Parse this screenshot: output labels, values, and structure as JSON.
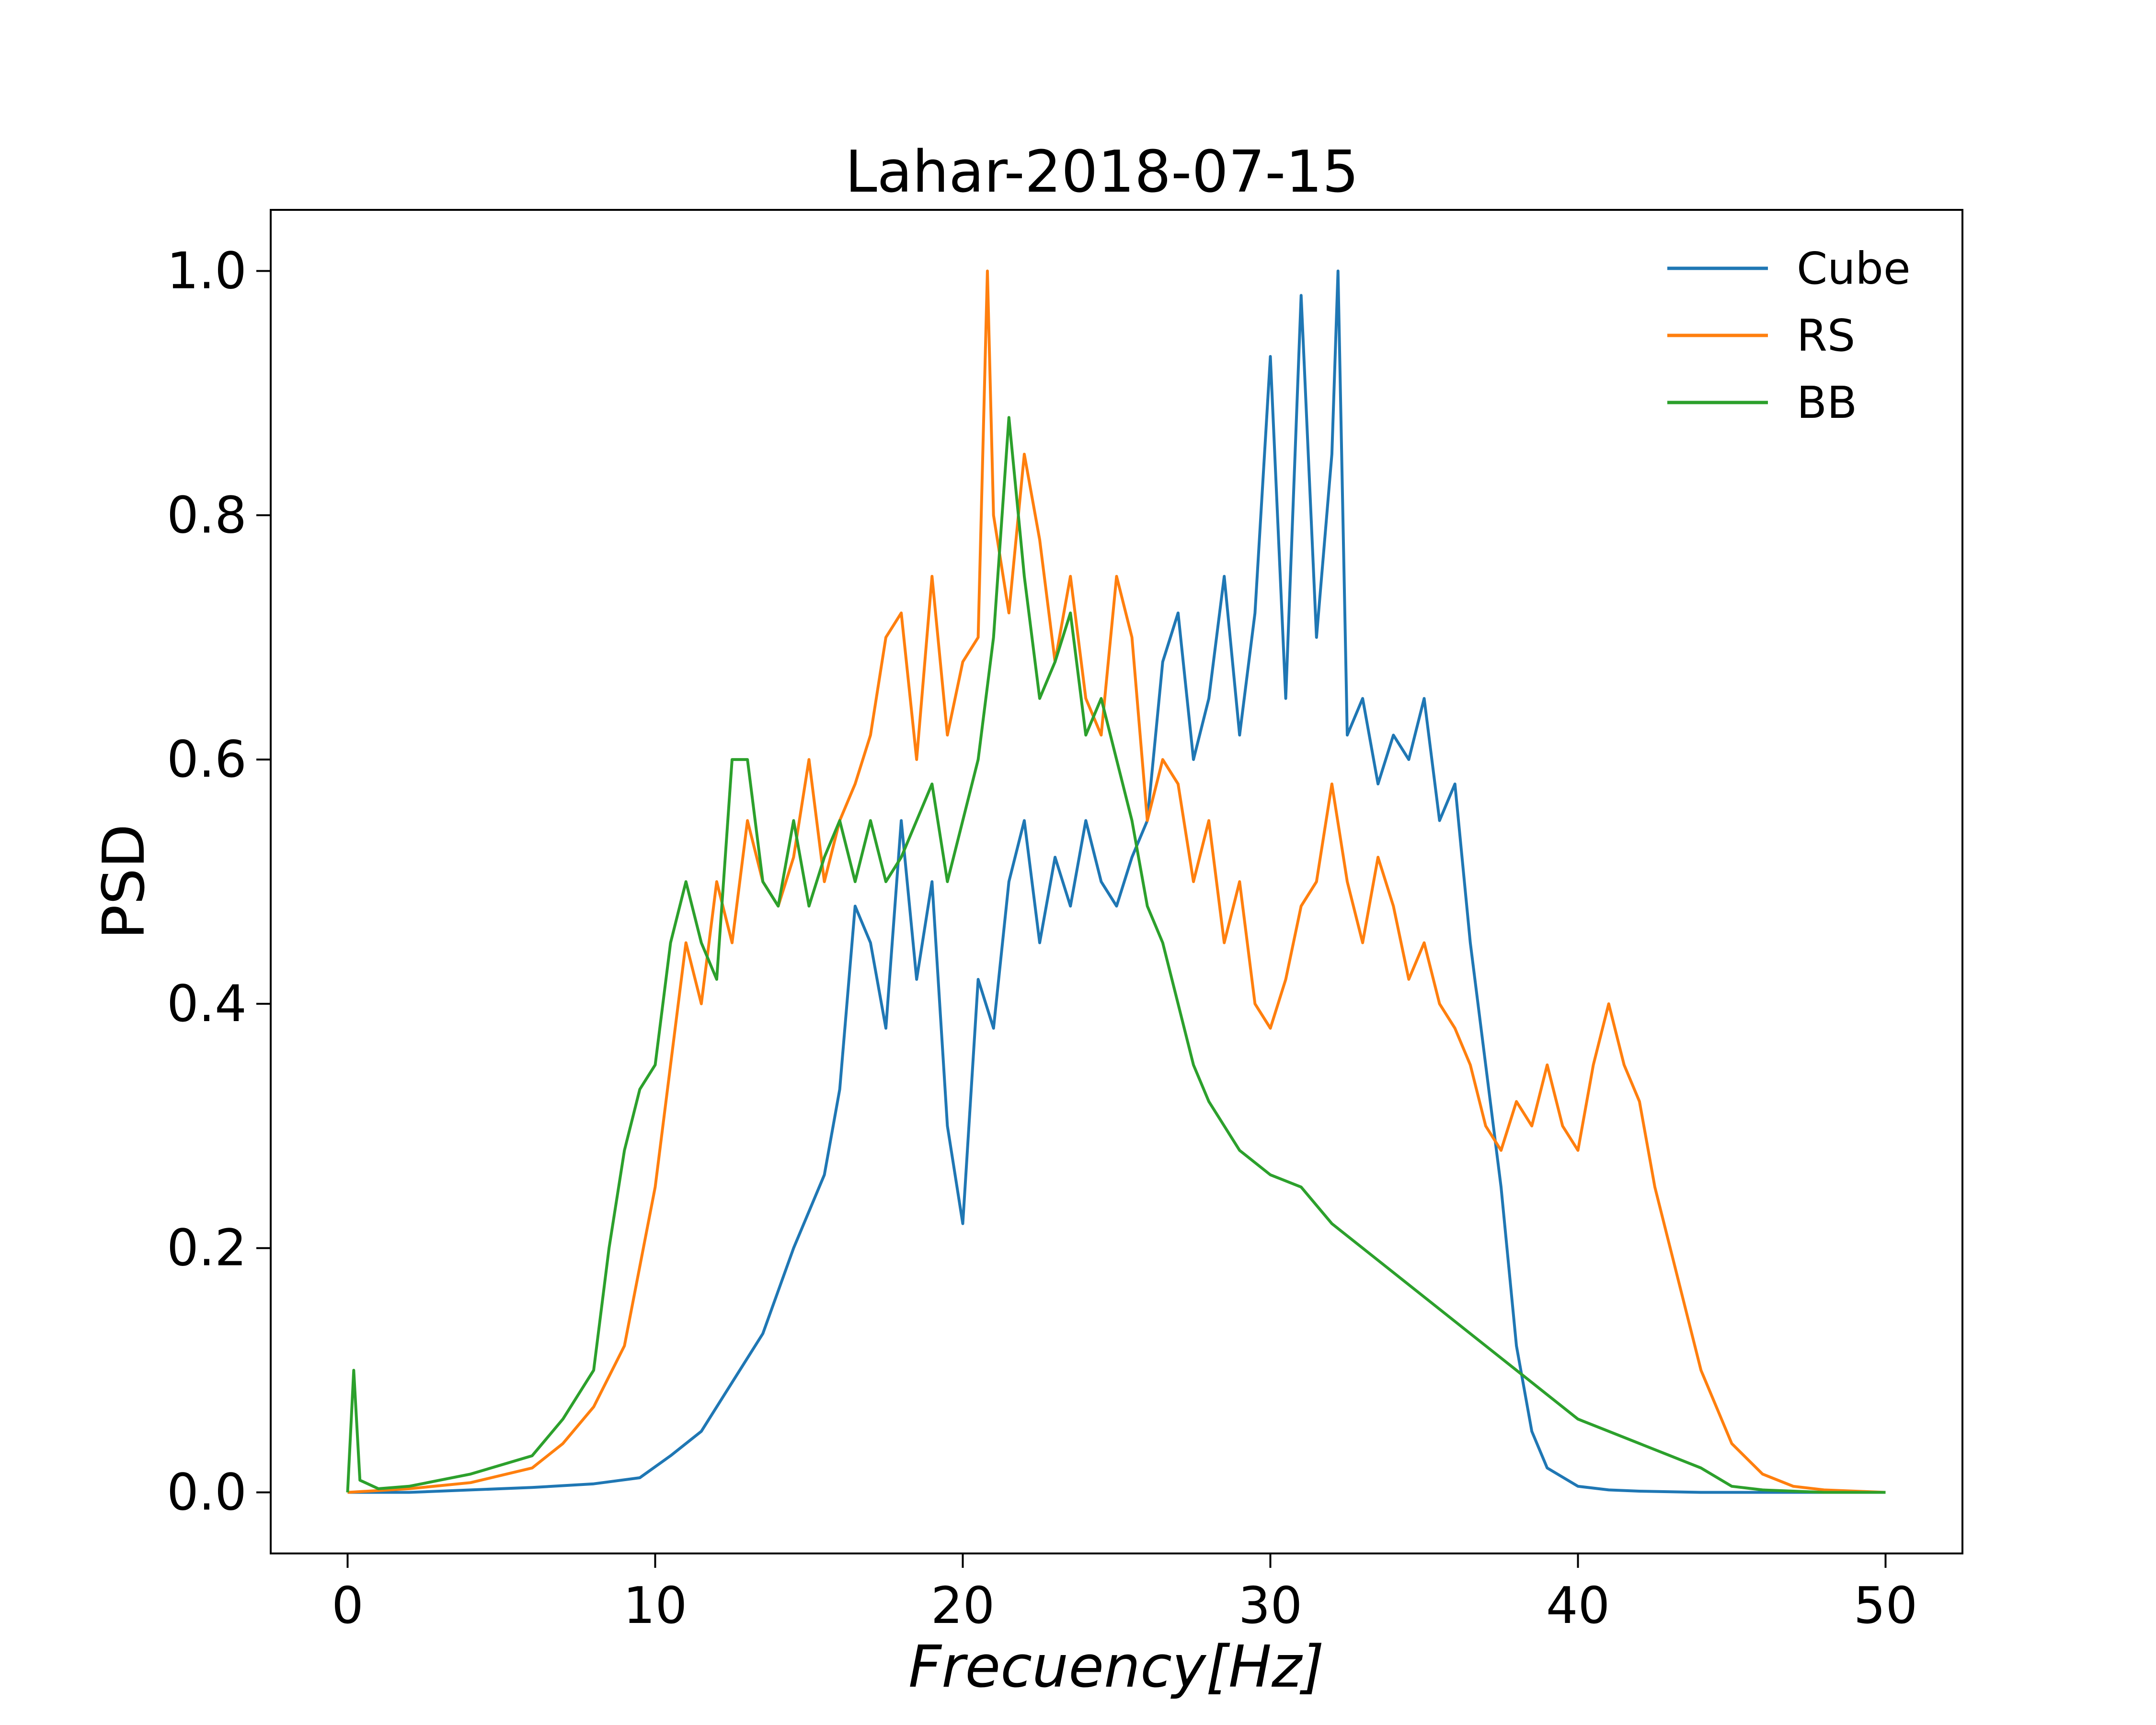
{
  "chart_data": {
    "type": "line",
    "title": "Lahar-2018-07-15",
    "xlabel": "Frecuency[Hz]",
    "ylabel": "PSD",
    "xlim": [
      -2.5,
      52.5
    ],
    "ylim": [
      -0.05,
      1.05
    ],
    "xticks": [
      0,
      10,
      20,
      30,
      40,
      50
    ],
    "yticks": [
      0.0,
      0.2,
      0.4,
      0.6,
      0.8,
      1.0
    ],
    "xtick_labels": [
      "0",
      "10",
      "20",
      "30",
      "40",
      "50"
    ],
    "ytick_labels": [
      "0.0",
      "0.2",
      "0.4",
      "0.6",
      "0.8",
      "1.0"
    ],
    "grid": false,
    "legend_position": "top-right",
    "series": [
      {
        "name": "Cube",
        "color": "#1f77b4",
        "x": [
          0,
          2,
          4,
          6,
          8,
          9.5,
          10.5,
          11.5,
          12.5,
          13.5,
          14.5,
          15.5,
          16,
          16.5,
          17,
          17.5,
          18,
          18.5,
          19,
          19.5,
          20,
          20.5,
          21,
          21.5,
          22,
          22.5,
          23,
          23.5,
          24,
          24.5,
          25,
          25.5,
          26,
          26.5,
          27,
          27.5,
          28,
          28.5,
          29,
          29.5,
          30,
          30.5,
          31,
          31.5,
          32,
          32.2,
          32.5,
          33,
          33.5,
          34,
          34.5,
          35,
          35.5,
          36,
          36.5,
          37,
          37.5,
          38,
          38.5,
          39,
          40,
          41,
          42,
          44,
          46,
          48,
          50
        ],
        "y": [
          0.0,
          0.0,
          0.002,
          0.004,
          0.007,
          0.012,
          0.03,
          0.05,
          0.09,
          0.13,
          0.2,
          0.26,
          0.33,
          0.48,
          0.45,
          0.38,
          0.55,
          0.42,
          0.5,
          0.3,
          0.22,
          0.42,
          0.38,
          0.5,
          0.55,
          0.45,
          0.52,
          0.48,
          0.55,
          0.5,
          0.48,
          0.52,
          0.55,
          0.68,
          0.72,
          0.6,
          0.65,
          0.75,
          0.62,
          0.72,
          0.93,
          0.65,
          0.98,
          0.7,
          0.85,
          1.0,
          0.62,
          0.65,
          0.58,
          0.62,
          0.6,
          0.65,
          0.55,
          0.58,
          0.45,
          0.35,
          0.25,
          0.12,
          0.05,
          0.02,
          0.005,
          0.002,
          0.001,
          0.0,
          0.0,
          0.0,
          0.0
        ]
      },
      {
        "name": "RS",
        "color": "#ff7f0e",
        "x": [
          0,
          2,
          4,
          6,
          7,
          8,
          9,
          10,
          10.5,
          11,
          11.5,
          12,
          12.5,
          13,
          13.5,
          14,
          14.5,
          15,
          15.5,
          16,
          16.5,
          17,
          17.5,
          18,
          18.5,
          19,
          19.5,
          20,
          20.5,
          20.8,
          21,
          21.5,
          22,
          22.5,
          23,
          23.5,
          24,
          24.5,
          25,
          25.5,
          26,
          26.5,
          27,
          27.5,
          28,
          28.5,
          29,
          29.5,
          30,
          30.5,
          31,
          31.5,
          32,
          32.5,
          33,
          33.5,
          34,
          34.5,
          35,
          35.5,
          36,
          36.5,
          37,
          37.5,
          38,
          38.5,
          39,
          39.5,
          40,
          40.5,
          41,
          41.5,
          42,
          42.5,
          43,
          43.5,
          44,
          44.5,
          45,
          46,
          47,
          48,
          50
        ],
        "y": [
          0.0,
          0.003,
          0.008,
          0.02,
          0.04,
          0.07,
          0.12,
          0.25,
          0.35,
          0.45,
          0.4,
          0.5,
          0.45,
          0.55,
          0.5,
          0.48,
          0.52,
          0.6,
          0.5,
          0.55,
          0.58,
          0.62,
          0.7,
          0.72,
          0.6,
          0.75,
          0.62,
          0.68,
          0.7,
          1.0,
          0.8,
          0.72,
          0.85,
          0.78,
          0.68,
          0.75,
          0.65,
          0.62,
          0.75,
          0.7,
          0.55,
          0.6,
          0.58,
          0.5,
          0.55,
          0.45,
          0.5,
          0.4,
          0.38,
          0.42,
          0.48,
          0.5,
          0.58,
          0.5,
          0.45,
          0.52,
          0.48,
          0.42,
          0.45,
          0.4,
          0.38,
          0.35,
          0.3,
          0.28,
          0.32,
          0.3,
          0.35,
          0.3,
          0.28,
          0.35,
          0.4,
          0.35,
          0.32,
          0.25,
          0.2,
          0.15,
          0.1,
          0.07,
          0.04,
          0.015,
          0.005,
          0.002,
          0.0
        ]
      },
      {
        "name": "BB",
        "color": "#2ca02c",
        "x": [
          0,
          0.2,
          0.4,
          1,
          2,
          4,
          6,
          7,
          8,
          8.5,
          9,
          9.5,
          10,
          10.5,
          11,
          11.5,
          12,
          12.5,
          13,
          13.5,
          14,
          14.5,
          15,
          15.5,
          16,
          16.5,
          17,
          17.5,
          18,
          18.5,
          19,
          19.5,
          20,
          20.5,
          21,
          21.5,
          22,
          22.5,
          23,
          23.5,
          24,
          24.5,
          25,
          25.5,
          26,
          26.5,
          27,
          27.5,
          28,
          28.5,
          29,
          29.5,
          30,
          31,
          32,
          33,
          34,
          35,
          36,
          37,
          38,
          39,
          40,
          41,
          42,
          43,
          44,
          45,
          46,
          48,
          50
        ],
        "y": [
          0.0,
          0.1,
          0.01,
          0.003,
          0.005,
          0.015,
          0.03,
          0.06,
          0.1,
          0.2,
          0.28,
          0.33,
          0.35,
          0.45,
          0.5,
          0.45,
          0.42,
          0.6,
          0.6,
          0.5,
          0.48,
          0.55,
          0.48,
          0.52,
          0.55,
          0.5,
          0.55,
          0.5,
          0.52,
          0.55,
          0.58,
          0.5,
          0.55,
          0.6,
          0.7,
          0.88,
          0.75,
          0.65,
          0.68,
          0.72,
          0.62,
          0.65,
          0.6,
          0.55,
          0.48,
          0.45,
          0.4,
          0.35,
          0.32,
          0.3,
          0.28,
          0.27,
          0.26,
          0.25,
          0.22,
          0.2,
          0.18,
          0.16,
          0.14,
          0.12,
          0.1,
          0.08,
          0.06,
          0.05,
          0.04,
          0.03,
          0.02,
          0.005,
          0.002,
          0.0,
          0.0
        ]
      }
    ]
  }
}
